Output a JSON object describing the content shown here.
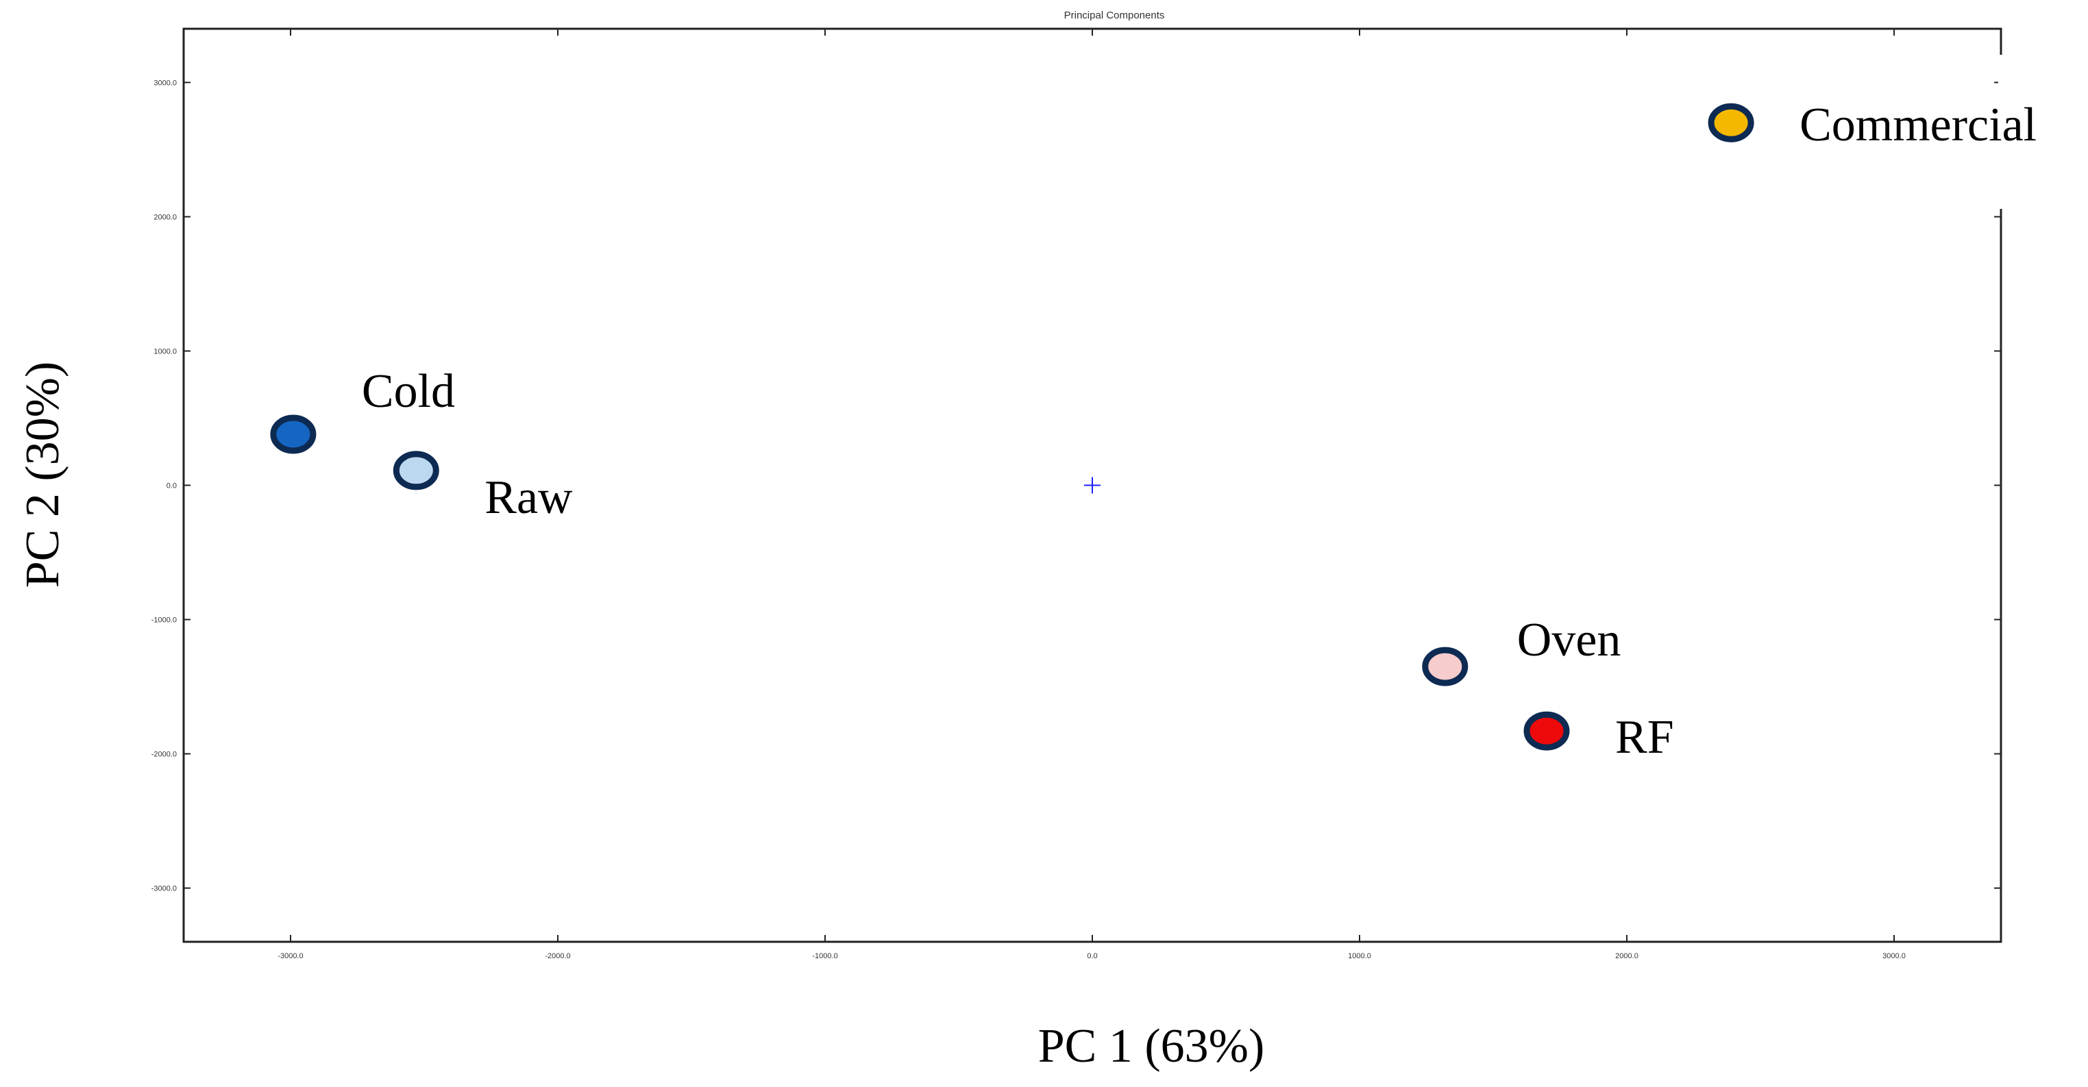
{
  "chart_data": {
    "type": "scatter",
    "title": "Principal Components",
    "xlabel": "PC 1 (63%)",
    "ylabel": "PC 2 (30%)",
    "xlim": [
      -3400,
      3400
    ],
    "ylim": [
      -3400,
      3400
    ],
    "x_ticks": [
      -3000,
      -2000,
      -1000,
      0,
      1000,
      2000,
      3000
    ],
    "y_ticks": [
      -3000,
      -2000,
      -1000,
      0,
      1000,
      2000,
      3000
    ],
    "x_tick_labels": [
      "-3000.0",
      "-2000.0",
      "-1000.0",
      "0.0",
      "1000.0",
      "2000.0",
      "3000.0"
    ],
    "y_tick_labels": [
      "-3000.0",
      "-2000.0",
      "-1000.0",
      "0.0",
      "1000.0",
      "2000.0",
      "3000.0"
    ],
    "grid": false,
    "origin_marker": {
      "x": 0,
      "y": 0,
      "color": "#1f1fff"
    },
    "points": [
      {
        "label": "Commercial",
        "x": 2390,
        "y": 2700,
        "fill": "#f5b800",
        "stroke": "#0d2a52"
      },
      {
        "label": "Cold",
        "x": -2990,
        "y": 380,
        "fill": "#1466c2",
        "stroke": "#0d2a52"
      },
      {
        "label": "Raw",
        "x": -2530,
        "y": 110,
        "fill": "#bcd8f0",
        "stroke": "#0d2a52"
      },
      {
        "label": "Oven",
        "x": 1320,
        "y": -1350,
        "fill": "#f7cccc",
        "stroke": "#0d2a52"
      },
      {
        "label": "RF",
        "x": 1700,
        "y": -1830,
        "fill": "#ee0a0a",
        "stroke": "#0d2a52"
      }
    ]
  }
}
